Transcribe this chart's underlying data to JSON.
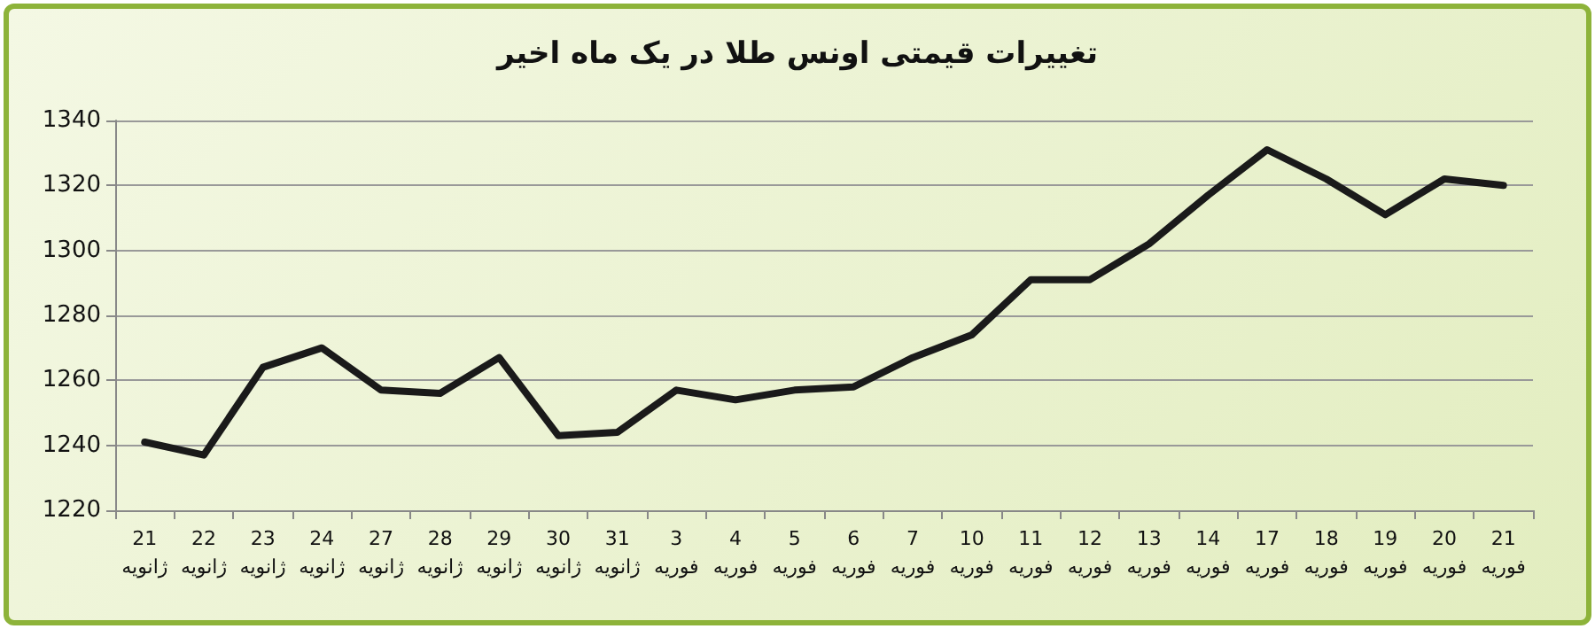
{
  "chart_data": {
    "type": "line",
    "title": "تغییرات قیمتی اونس طلا در یک ماه اخیر",
    "categories": [
      "21\nژانویه",
      "22\nژانویه",
      "23\nژانویه",
      "24\nژانویه",
      "27\nژانویه",
      "28\nژانویه",
      "29\nژانویه",
      "30\nژانویه",
      "31\nژانویه",
      "3\nفوریه",
      "4\nفوریه",
      "5\nفوریه",
      "6\nفوریه",
      "7\nفوریه",
      "10\nفوریه",
      "11\nفوریه",
      "12\nفوریه",
      "13\nفوریه",
      "14\nفوریه",
      "17\nفوریه",
      "18\nفوریه",
      "19\nفوریه",
      "20\nفوریه",
      "21\nفوریه"
    ],
    "series": [
      {
        "color": "#1a1a1a",
        "values": [
          1241,
          1237,
          1264,
          1270,
          1257,
          1256,
          1267,
          1243,
          1244,
          1257,
          1254,
          1257,
          1258,
          1267,
          1274,
          1291,
          1291,
          1302,
          1317,
          1331,
          1322,
          1311,
          1322,
          1320
        ]
      }
    ],
    "ylim": [
      1220,
      1340
    ],
    "yticks": [
      1220,
      1240,
      1260,
      1280,
      1300,
      1320,
      1340
    ],
    "grid": "y",
    "marker": "none",
    "line_style": "solid"
  }
}
